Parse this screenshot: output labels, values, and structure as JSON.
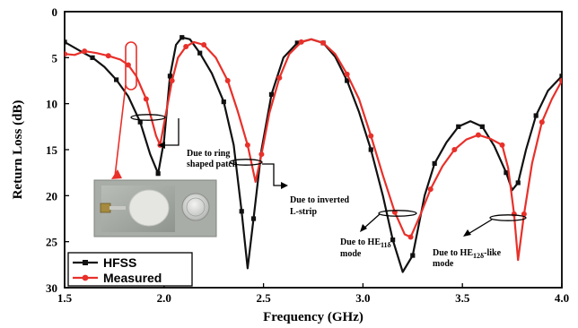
{
  "chart_data": {
    "type": "line",
    "xlabel": "Frequency (GHz)",
    "ylabel": "Return Loss (dB)",
    "xlim": [
      1.5,
      4.0
    ],
    "ylim": [
      0,
      30
    ],
    "y_inverted": true,
    "x_ticks": [
      "1.5",
      "2.0",
      "2.5",
      "3.0",
      "3.5",
      "4.0"
    ],
    "y_ticks": [
      "0",
      "5",
      "10",
      "15",
      "20",
      "25",
      "30"
    ],
    "grid": false,
    "legend_position": "bottom-left",
    "series": [
      {
        "name": "HFSS",
        "color": "#111111",
        "marker": "square",
        "points": [
          [
            1.5,
            3.3
          ],
          [
            1.58,
            4.3
          ],
          [
            1.64,
            5.0
          ],
          [
            1.7,
            6.0
          ],
          [
            1.76,
            7.4
          ],
          [
            1.82,
            9.2
          ],
          [
            1.88,
            12.0
          ],
          [
            1.93,
            15.5
          ],
          [
            1.97,
            17.6
          ],
          [
            2.0,
            14.0
          ],
          [
            2.03,
            7.0
          ],
          [
            2.06,
            3.6
          ],
          [
            2.09,
            2.8
          ],
          [
            2.13,
            3.0
          ],
          [
            2.18,
            4.5
          ],
          [
            2.24,
            6.7
          ],
          [
            2.3,
            9.8
          ],
          [
            2.35,
            14.5
          ],
          [
            2.39,
            21.7
          ],
          [
            2.42,
            27.9
          ],
          [
            2.45,
            22.5
          ],
          [
            2.49,
            15.0
          ],
          [
            2.54,
            9.0
          ],
          [
            2.6,
            5.0
          ],
          [
            2.67,
            3.4
          ],
          [
            2.74,
            3.0
          ],
          [
            2.8,
            3.4
          ],
          [
            2.86,
            4.9
          ],
          [
            2.92,
            7.5
          ],
          [
            2.98,
            10.9
          ],
          [
            3.04,
            15.0
          ],
          [
            3.1,
            20.0
          ],
          [
            3.15,
            24.8
          ],
          [
            3.2,
            28.3
          ],
          [
            3.25,
            26.5
          ],
          [
            3.31,
            20.0
          ],
          [
            3.36,
            16.5
          ],
          [
            3.42,
            14.2
          ],
          [
            3.48,
            12.5
          ],
          [
            3.54,
            11.9
          ],
          [
            3.6,
            12.5
          ],
          [
            3.66,
            14.6
          ],
          [
            3.72,
            17.5
          ],
          [
            3.75,
            19.4
          ],
          [
            3.78,
            18.6
          ],
          [
            3.82,
            15.0
          ],
          [
            3.87,
            11.3
          ],
          [
            3.93,
            8.6
          ],
          [
            4.0,
            7.0
          ]
        ]
      },
      {
        "name": "Measured",
        "color": "#e8302a",
        "marker": "circle",
        "points": [
          [
            1.5,
            4.6
          ],
          [
            1.55,
            4.7
          ],
          [
            1.6,
            4.3
          ],
          [
            1.66,
            4.5
          ],
          [
            1.72,
            4.8
          ],
          [
            1.78,
            5.2
          ],
          [
            1.82,
            5.8
          ],
          [
            1.86,
            7.0
          ],
          [
            1.91,
            9.5
          ],
          [
            1.96,
            13.5
          ],
          [
            1.98,
            14.5
          ],
          [
            2.01,
            11.0
          ],
          [
            2.04,
            7.5
          ],
          [
            2.07,
            5.0
          ],
          [
            2.11,
            3.8
          ],
          [
            2.15,
            3.3
          ],
          [
            2.2,
            3.6
          ],
          [
            2.26,
            5.0
          ],
          [
            2.32,
            7.5
          ],
          [
            2.37,
            10.8
          ],
          [
            2.42,
            14.5
          ],
          [
            2.46,
            18.5
          ],
          [
            2.49,
            15.5
          ],
          [
            2.53,
            11.0
          ],
          [
            2.58,
            7.2
          ],
          [
            2.63,
            4.6
          ],
          [
            2.69,
            3.3
          ],
          [
            2.74,
            3.0
          ],
          [
            2.8,
            3.4
          ],
          [
            2.86,
            4.6
          ],
          [
            2.92,
            6.8
          ],
          [
            2.98,
            9.5
          ],
          [
            3.04,
            13.5
          ],
          [
            3.1,
            17.8
          ],
          [
            3.16,
            21.8
          ],
          [
            3.21,
            24.2
          ],
          [
            3.24,
            24.5
          ],
          [
            3.29,
            22.0
          ],
          [
            3.34,
            19.3
          ],
          [
            3.4,
            16.8
          ],
          [
            3.46,
            15.0
          ],
          [
            3.52,
            13.9
          ],
          [
            3.58,
            13.4
          ],
          [
            3.64,
            13.8
          ],
          [
            3.7,
            14.5
          ],
          [
            3.73,
            17.0
          ],
          [
            3.76,
            22.0
          ],
          [
            3.78,
            27.0
          ],
          [
            3.81,
            22.0
          ],
          [
            3.85,
            16.5
          ],
          [
            3.9,
            12.0
          ],
          [
            3.95,
            9.5
          ],
          [
            4.0,
            7.5
          ]
        ]
      }
    ],
    "annotations": {
      "ring_patch": [
        "Due to ring",
        "shaped patch"
      ],
      "inverted_l": [
        "Due to inverted",
        "L-strip"
      ],
      "he11": [
        "Due to HE",
        "11δ",
        "mode"
      ],
      "he12": [
        "Due to HE",
        "12δ",
        "-like",
        "mode"
      ]
    }
  },
  "photo": {
    "description": "prototype antenna photo",
    "coin_label": "coin"
  }
}
